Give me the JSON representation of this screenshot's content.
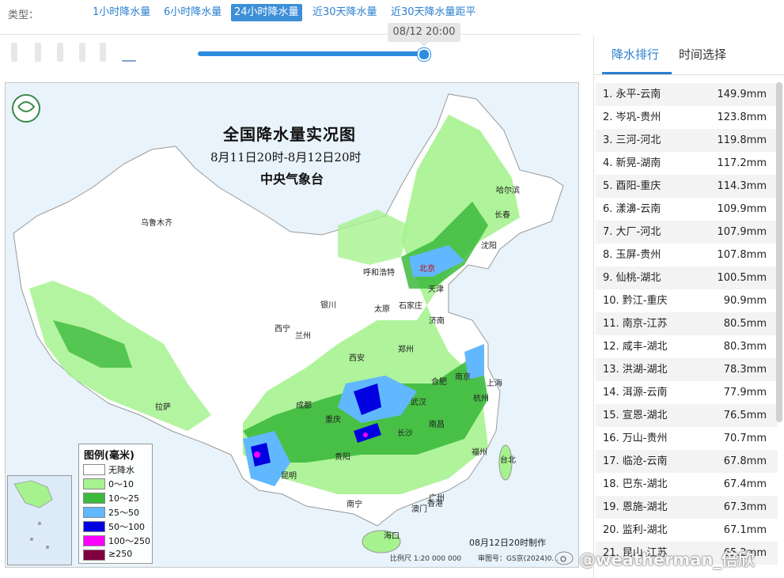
{
  "topbar": {
    "type_label": "类型：",
    "tabs": [
      {
        "label": "1小时降水量"
      },
      {
        "label": "6小时降水量"
      },
      {
        "label": "24小时降水量",
        "active": true
      },
      {
        "label": "近30天降水量"
      },
      {
        "label": "近30天降水量距平"
      }
    ]
  },
  "timeline": {
    "tooltip": "08/12 20:00",
    "progress": 1.0
  },
  "map": {
    "title": "全国降水量实况图",
    "subtitle": "8月11日20时-8月12日20时",
    "agency": "中央气象台",
    "made_time": "08月12日20时制作",
    "scale": "比例尺 1:20 000 000",
    "review": "审图号：GS京(2024)0...",
    "cities": [
      "乌鲁木齐",
      "哈尔滨",
      "长春",
      "沈阳",
      "呼和浩特",
      "北京",
      "天津",
      "银川",
      "太原",
      "石家庄",
      "济南",
      "西宁",
      "兰州",
      "郑州",
      "西安",
      "拉萨",
      "成都",
      "重庆",
      "武汉",
      "合肥",
      "南京",
      "上海",
      "杭州",
      "长沙",
      "南昌",
      "福州",
      "台北",
      "贵阳",
      "昆明",
      "南宁",
      "广州",
      "澳门",
      "香港",
      "海口"
    ],
    "legend": {
      "title": "图例(毫米)",
      "items": [
        {
          "label": "无降水",
          "color": "#ffffff"
        },
        {
          "label": "0～10",
          "color": "#a6f28f"
        },
        {
          "label": "10～25",
          "color": "#3dba3d"
        },
        {
          "label": "25～50",
          "color": "#61b8ff"
        },
        {
          "label": "50～100",
          "color": "#0000e1"
        },
        {
          "label": "100～250",
          "color": "#fa00fa"
        },
        {
          "label": "≥250",
          "color": "#800040"
        }
      ]
    }
  },
  "right_panel": {
    "tabs": [
      {
        "label": "降水排行",
        "active": true
      },
      {
        "label": "时间选择"
      }
    ],
    "ranking": [
      {
        "name": "1. 永平-云南",
        "value": "149.9mm"
      },
      {
        "name": "2. 岑巩-贵州",
        "value": "123.8mm"
      },
      {
        "name": "3. 三河-河北",
        "value": "119.8mm"
      },
      {
        "name": "4. 新晃-湖南",
        "value": "117.2mm"
      },
      {
        "name": "5. 酉阳-重庆",
        "value": "114.3mm"
      },
      {
        "name": "6. 漾濞-云南",
        "value": "109.9mm"
      },
      {
        "name": "7. 大厂-河北",
        "value": "107.9mm"
      },
      {
        "name": "8. 玉屏-贵州",
        "value": "107.8mm"
      },
      {
        "name": "9. 仙桃-湖北",
        "value": "100.5mm"
      },
      {
        "name": "10. 黔江-重庆",
        "value": "90.9mm"
      },
      {
        "name": "11. 南京-江苏",
        "value": "80.5mm"
      },
      {
        "name": "12. 咸丰-湖北",
        "value": "80.3mm"
      },
      {
        "name": "13. 洪湖-湖北",
        "value": "78.3mm"
      },
      {
        "name": "14. 洱源-云南",
        "value": "77.9mm"
      },
      {
        "name": "15. 宣恩-湖北",
        "value": "76.5mm"
      },
      {
        "name": "16. 万山-贵州",
        "value": "70.7mm"
      },
      {
        "name": "17. 临沧-云南",
        "value": "67.8mm"
      },
      {
        "name": "18. 巴东-湖北",
        "value": "67.4mm"
      },
      {
        "name": "19. 恩施-湖北",
        "value": "67.3mm"
      },
      {
        "name": "20. 监利-湖北",
        "value": "67.1mm"
      },
      {
        "name": "21. 昆山-江苏",
        "value": "65.2mm"
      }
    ]
  },
  "watermark": "@weatherman_倍欣"
}
